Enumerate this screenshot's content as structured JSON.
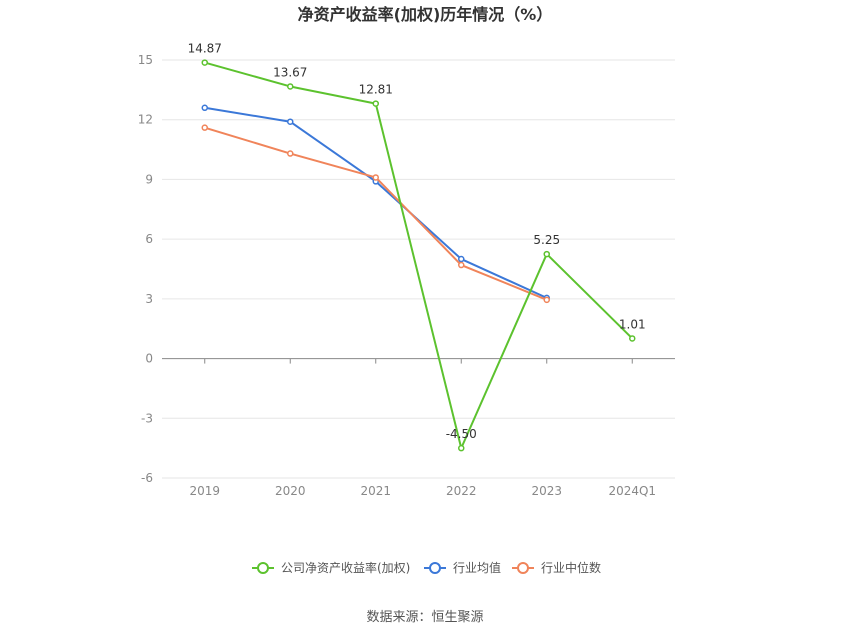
{
  "chart_data": {
    "type": "line",
    "title": "净资产收益率(加权)历年情况（%）",
    "categories": [
      "2019",
      "2020",
      "2021",
      "2022",
      "2023",
      "2024Q1"
    ],
    "y_ticks": [
      "15",
      "12",
      "9",
      "6",
      "3",
      "0",
      "-3",
      "-6"
    ],
    "ylim": [
      -6,
      15
    ],
    "grid": true,
    "legend_position": "bottom",
    "series": [
      {
        "name": "公司净资产收益率(加权)",
        "color": "#5cc22e",
        "values": [
          14.87,
          13.67,
          12.81,
          -4.5,
          5.25,
          1.01
        ],
        "labels": [
          "14.87",
          "13.67",
          "12.81",
          "-4.50",
          "5.25",
          "1.01"
        ]
      },
      {
        "name": "行业均值",
        "color": "#3b78d8",
        "values": [
          12.6,
          11.9,
          8.9,
          5.0,
          3.05,
          null
        ]
      },
      {
        "name": "行业中位数",
        "color": "#f0845a",
        "values": [
          11.6,
          10.3,
          9.1,
          4.7,
          2.95,
          null
        ]
      }
    ],
    "source": "数据来源：恒生聚源"
  }
}
